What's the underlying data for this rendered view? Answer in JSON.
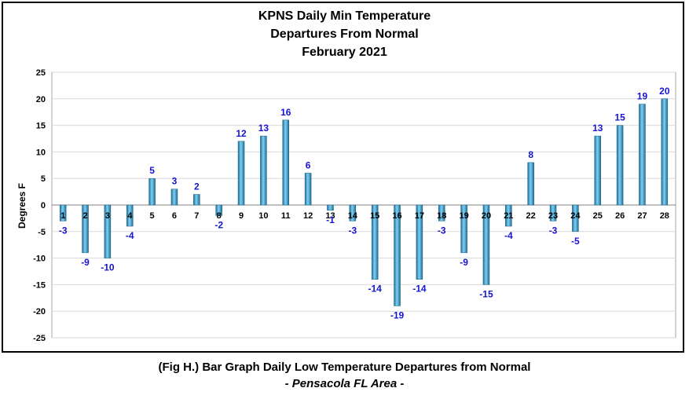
{
  "chart_data": {
    "type": "bar",
    "title_lines": [
      "KPNS Daily Min Temperature",
      "Departures From Normal",
      "February 2021"
    ],
    "ylabel": "Degrees F",
    "xlabel": "",
    "ylim": [
      -25,
      25
    ],
    "yticks": [
      25,
      20,
      15,
      10,
      5,
      0,
      -5,
      -10,
      -15,
      -20,
      -25
    ],
    "grid": true,
    "categories": [
      "1",
      "2",
      "3",
      "4",
      "5",
      "6",
      "7",
      "8",
      "9",
      "10",
      "11",
      "12",
      "13",
      "14",
      "15",
      "16",
      "17",
      "18",
      "19",
      "20",
      "21",
      "22",
      "23",
      "24",
      "25",
      "26",
      "27",
      "28"
    ],
    "values": [
      -3,
      -9,
      -10,
      -4,
      5,
      3,
      2,
      -2,
      12,
      13,
      16,
      6,
      -1,
      -3,
      -14,
      -19,
      -14,
      -3,
      -9,
      -15,
      -4,
      8,
      -3,
      -5,
      13,
      15,
      19,
      20
    ],
    "data_labels": [
      "-3",
      "-9",
      "-10",
      "-4",
      "5",
      "3",
      "2",
      "-2",
      "12",
      "13",
      "16",
      "6",
      "-1",
      "-3",
      "-14",
      "-19",
      "-14",
      "-3",
      "-9",
      "-15",
      "-4",
      "8",
      "-3",
      "-5",
      "13",
      "15",
      "19",
      "20"
    ],
    "bar_color": "#3a9fd0",
    "label_color": "#1414d2"
  },
  "caption": {
    "line1": "(Fig H.) Bar Graph Daily Low Temperature Departures from Normal",
    "line2": "- Pensacola FL Area -"
  }
}
